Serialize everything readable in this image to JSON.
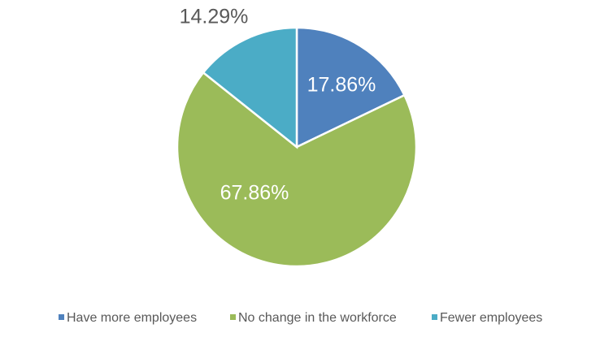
{
  "chart_data": {
    "type": "pie",
    "categories": [
      "Have more employees",
      "No change in the workforce",
      "Fewer employees"
    ],
    "values": [
      17.86,
      67.86,
      14.29
    ],
    "value_labels": [
      "17.86%",
      "67.86%",
      "14.29%"
    ],
    "colors": [
      "#4f81bd",
      "#9bbb59",
      "#4bacc6"
    ]
  }
}
